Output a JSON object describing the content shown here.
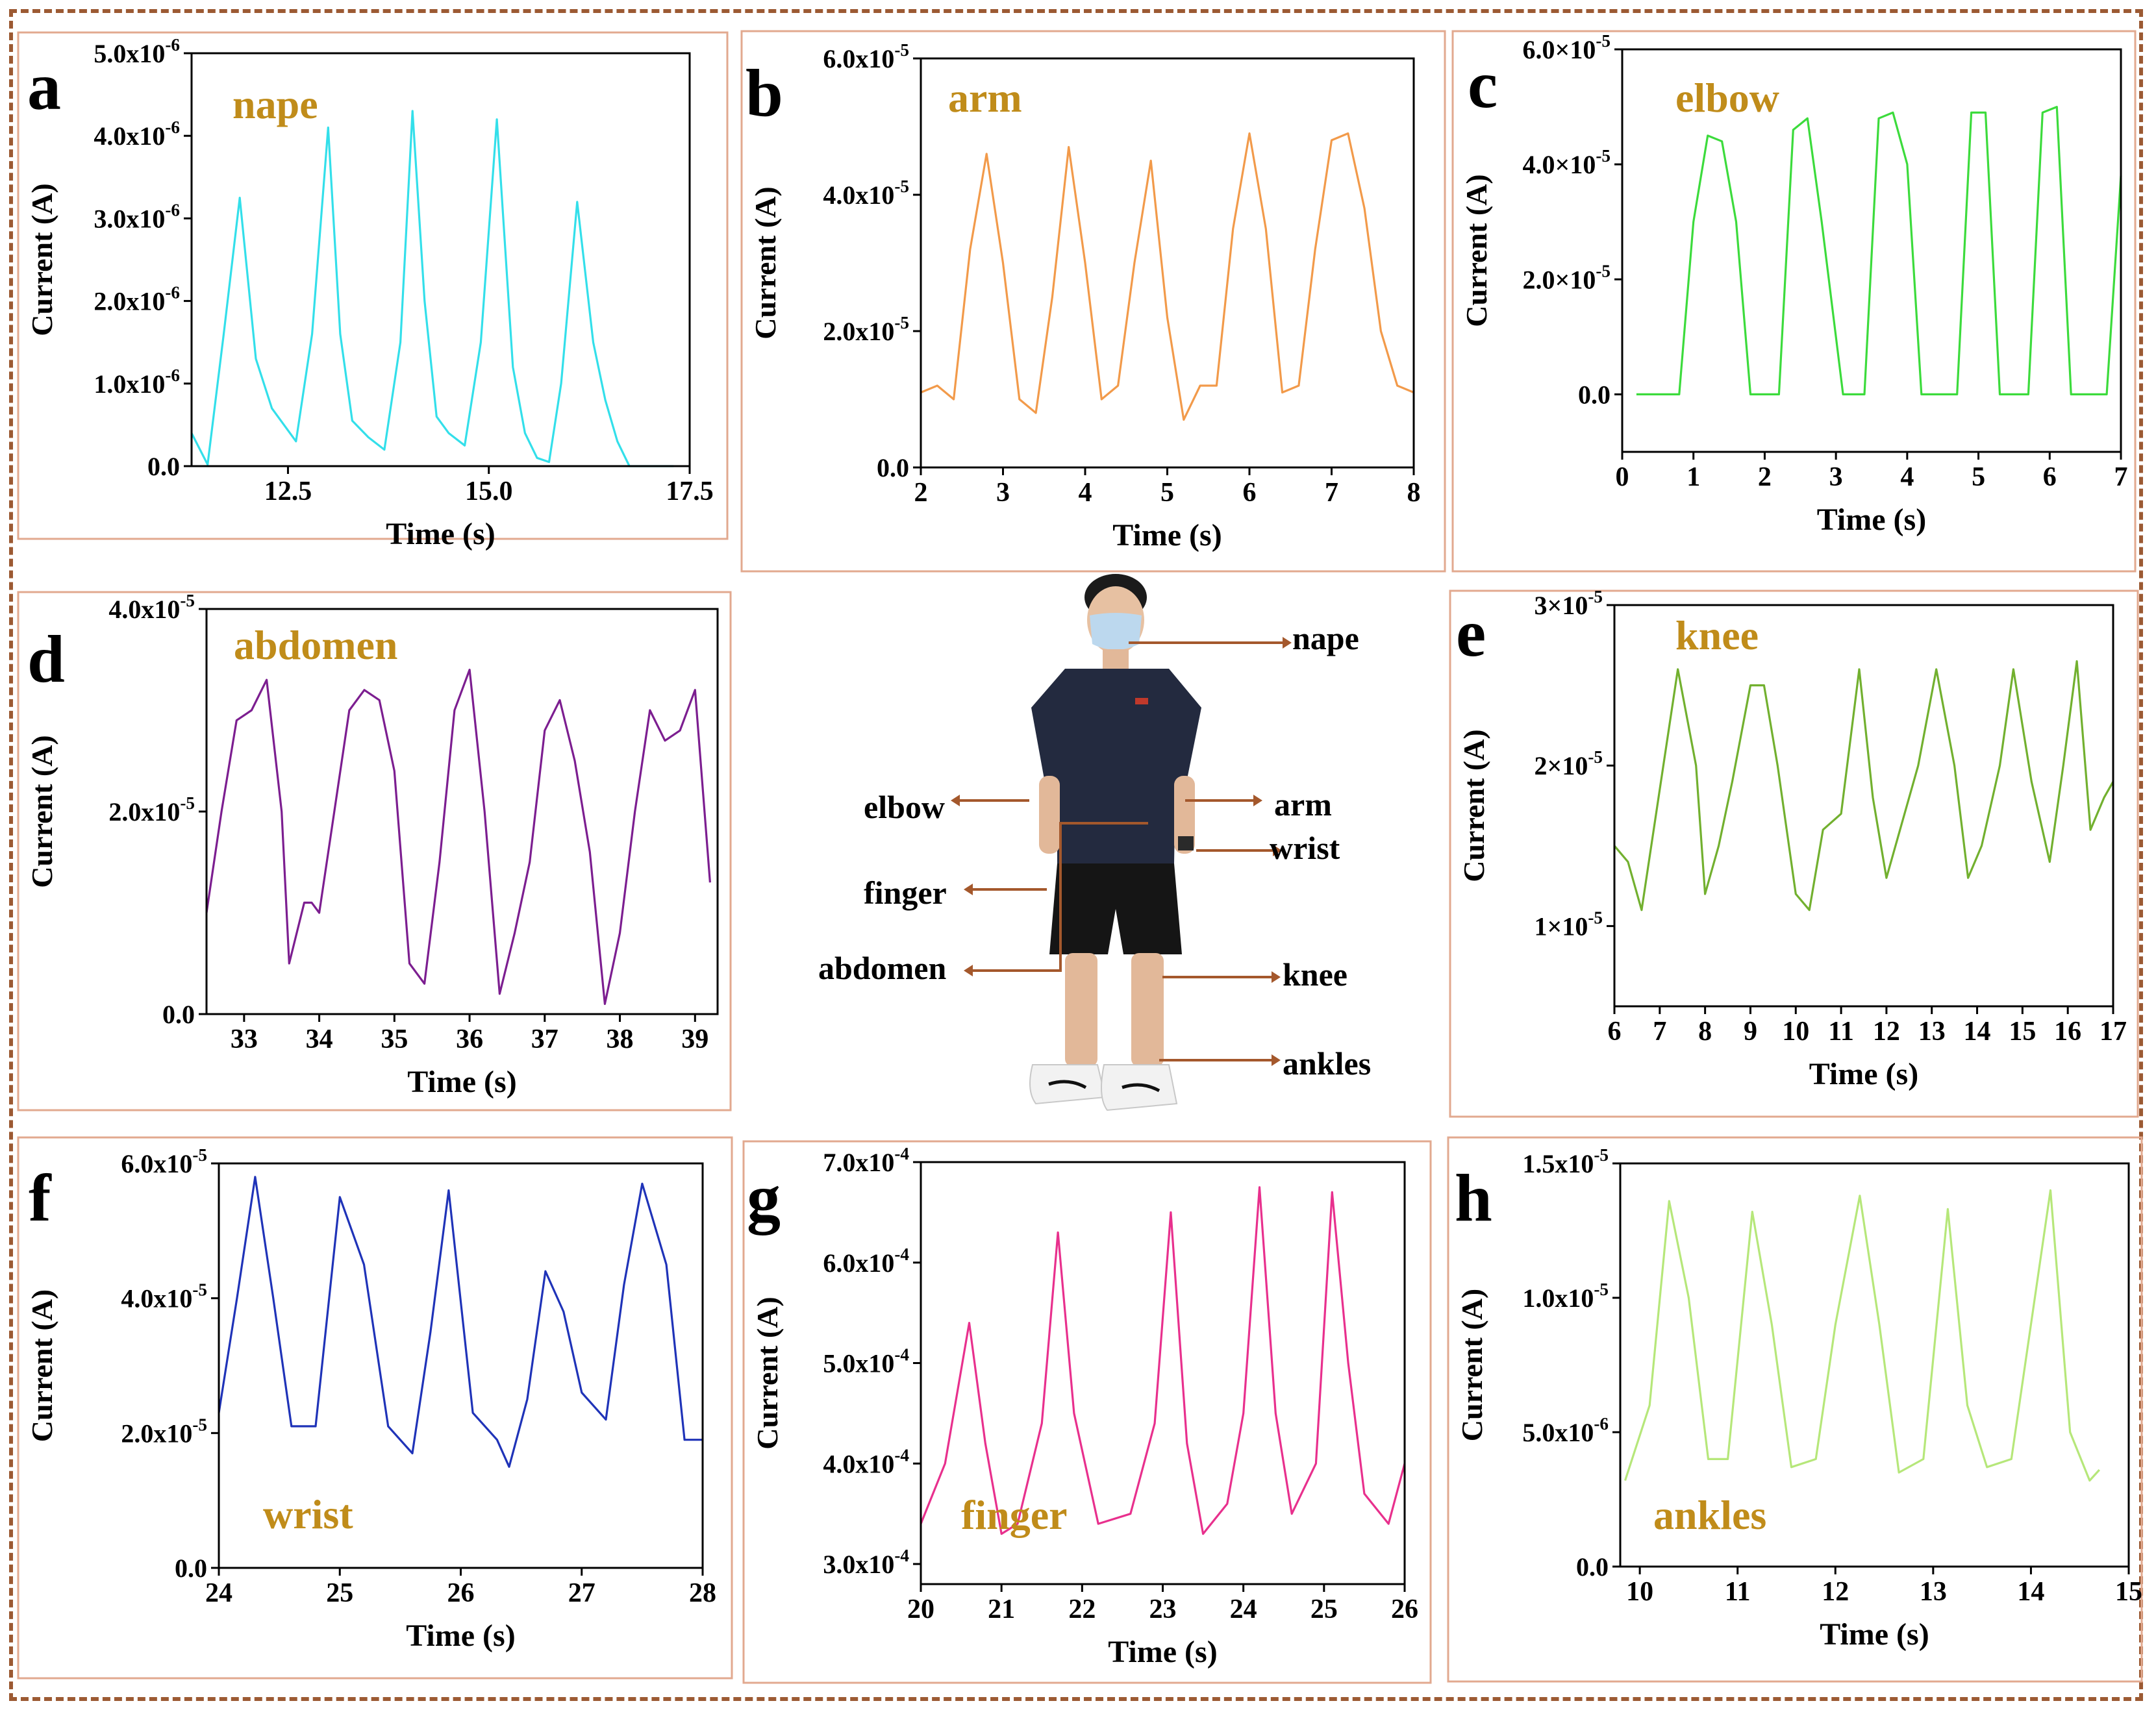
{
  "figure": {
    "center_labels": [
      "nape",
      "arm",
      "wrist",
      "elbow",
      "finger",
      "abdomen",
      "knee",
      "ankles"
    ],
    "colors": {
      "frame": "#9c5a33",
      "panel_border": "#e2a98f",
      "annotation_text": "#c08c1a",
      "arrow": "#a4582c",
      "axis": "#000000"
    }
  },
  "chart_data": [
    {
      "panel_letter": "a",
      "type": "line",
      "title": "nape",
      "color": "#33dfea",
      "xlabel": "Time (s)",
      "ylabel": "Current (A)",
      "xlim": [
        11.3,
        17.5
      ],
      "ylim": [
        0,
        5e-06
      ],
      "xticks": [
        12.5,
        15.0,
        17.5
      ],
      "xticklabels": [
        "12.5",
        "15.0",
        "17.5"
      ],
      "yticks": [
        0,
        1e-06,
        2e-06,
        3e-06,
        4e-06,
        5e-06
      ],
      "yticklabels": [
        "0.0",
        "1.0x10^-6",
        "2.0x10^-6",
        "3.0x10^-6",
        "4.0x10^-6",
        "5.0x10^-6"
      ],
      "x": [
        11.3,
        11.5,
        11.7,
        11.9,
        12.1,
        12.3,
        12.6,
        12.8,
        13.0,
        13.15,
        13.3,
        13.5,
        13.7,
        13.9,
        14.05,
        14.2,
        14.35,
        14.5,
        14.7,
        14.9,
        15.1,
        15.3,
        15.45,
        15.6,
        15.75,
        15.9,
        16.1,
        16.3,
        16.45,
        16.6,
        16.75,
        16.9,
        17.0,
        17.15,
        17.3
      ],
      "values": [
        4e-07,
        2e-08,
        1.6e-06,
        3.25e-06,
        1.3e-06,
        7e-07,
        3e-07,
        1.6e-06,
        4.1e-06,
        1.6e-06,
        5.5e-07,
        3.5e-07,
        2e-07,
        1.5e-06,
        4.3e-06,
        2e-06,
        6e-07,
        4e-07,
        2.5e-07,
        1.5e-06,
        4.2e-06,
        1.2e-06,
        4e-07,
        1e-07,
        5e-08,
        1e-06,
        3.2e-06,
        1.5e-06,
        8e-07,
        3e-07,
        0.0,
        0.0,
        0.0,
        0.0,
        0.0
      ]
    },
    {
      "panel_letter": "b",
      "type": "line",
      "title": "arm",
      "color": "#f29a4a",
      "xlabel": "Time (s)",
      "ylabel": "Current (A)",
      "xlim": [
        2,
        8
      ],
      "ylim": [
        0,
        6e-05
      ],
      "xticks": [
        2,
        3,
        4,
        5,
        6,
        7,
        8
      ],
      "xticklabels": [
        "2",
        "3",
        "4",
        "5",
        "6",
        "7",
        "8"
      ],
      "yticks": [
        0,
        2e-05,
        4e-05,
        6e-05
      ],
      "yticklabels": [
        "0.0",
        "2.0x10^-5",
        "4.0x10^-5",
        "6.0x10^-5"
      ],
      "x": [
        2.0,
        2.2,
        2.4,
        2.6,
        2.8,
        3.0,
        3.2,
        3.4,
        3.6,
        3.8,
        4.0,
        4.2,
        4.4,
        4.6,
        4.8,
        5.0,
        5.2,
        5.4,
        5.6,
        5.8,
        6.0,
        6.2,
        6.4,
        6.6,
        6.8,
        7.0,
        7.2,
        7.4,
        7.6,
        7.8,
        8.0
      ],
      "values": [
        1.1e-05,
        1.2e-05,
        1e-05,
        3.2e-05,
        4.6e-05,
        3e-05,
        1e-05,
        8e-06,
        2.5e-05,
        4.7e-05,
        3e-05,
        1e-05,
        1.2e-05,
        3e-05,
        4.5e-05,
        2.2e-05,
        7e-06,
        1.2e-05,
        1.2e-05,
        3.5e-05,
        4.9e-05,
        3.5e-05,
        1.1e-05,
        1.2e-05,
        3.2e-05,
        4.8e-05,
        4.9e-05,
        3.8e-05,
        2e-05,
        1.2e-05,
        1.1e-05
      ]
    },
    {
      "panel_letter": "c",
      "type": "line",
      "title": "elbow",
      "color": "#3cdb3c",
      "xlabel": "Time (s)",
      "ylabel": "Current (A)",
      "xlim": [
        0,
        7
      ],
      "ylim": [
        -1e-05,
        6e-05
      ],
      "xticks": [
        0,
        1,
        2,
        3,
        4,
        5,
        6,
        7
      ],
      "xticklabels": [
        "0",
        "1",
        "2",
        "3",
        "4",
        "5",
        "6",
        "7"
      ],
      "yticks": [
        0,
        2e-05,
        4e-05,
        6e-05
      ],
      "yticklabels": [
        "0.0",
        "2.0×10^-5",
        "4.0×10^-5",
        "6.0×10^-5"
      ],
      "x": [
        0.2,
        0.8,
        1.0,
        1.2,
        1.4,
        1.6,
        1.8,
        2.2,
        2.4,
        2.6,
        2.8,
        3.1,
        3.4,
        3.6,
        3.8,
        4.0,
        4.2,
        4.7,
        4.9,
        5.1,
        5.3,
        5.7,
        5.9,
        6.1,
        6.3,
        6.7,
        6.8,
        7.0
      ],
      "values": [
        0.0,
        0.0,
        3e-05,
        4.5e-05,
        4.4e-05,
        3e-05,
        0.0,
        0.0,
        4.6e-05,
        4.8e-05,
        3e-05,
        0.0,
        0.0,
        4.8e-05,
        4.9e-05,
        4e-05,
        0.0,
        0.0,
        4.9e-05,
        4.9e-05,
        0.0,
        0.0,
        4.9e-05,
        5e-05,
        0.0,
        0.0,
        0.0,
        3.8e-05
      ]
    },
    {
      "panel_letter": "d",
      "type": "line",
      "title": "abdomen",
      "color": "#7c1e90",
      "xlabel": "Time (s)",
      "ylabel": "Current (A)",
      "xlim": [
        32.5,
        39.3
      ],
      "ylim": [
        0,
        4e-05
      ],
      "xticks": [
        33,
        34,
        35,
        36,
        37,
        38,
        39
      ],
      "xticklabels": [
        "33",
        "34",
        "35",
        "36",
        "37",
        "38",
        "39"
      ],
      "yticks": [
        0,
        2e-05,
        4e-05
      ],
      "yticklabels": [
        "0.0",
        "2.0x10^-5",
        "4.0x10^-5"
      ],
      "x": [
        32.5,
        32.7,
        32.9,
        33.1,
        33.3,
        33.5,
        33.6,
        33.8,
        33.9,
        34.0,
        34.2,
        34.4,
        34.6,
        34.8,
        35.0,
        35.2,
        35.4,
        35.6,
        35.8,
        36.0,
        36.2,
        36.4,
        36.6,
        36.8,
        37.0,
        37.2,
        37.4,
        37.6,
        37.8,
        38.0,
        38.2,
        38.4,
        38.6,
        38.8,
        39.0,
        39.2
      ],
      "values": [
        1e-05,
        2e-05,
        2.9e-05,
        3e-05,
        3.3e-05,
        2e-05,
        5e-06,
        1.1e-05,
        1.1e-05,
        1e-05,
        2e-05,
        3e-05,
        3.2e-05,
        3.1e-05,
        2.4e-05,
        5e-06,
        3e-06,
        1.5e-05,
        3e-05,
        3.4e-05,
        2e-05,
        2e-06,
        8e-06,
        1.5e-05,
        2.8e-05,
        3.1e-05,
        2.5e-05,
        1.6e-05,
        1e-06,
        8e-06,
        2e-05,
        3e-05,
        2.7e-05,
        2.8e-05,
        3.2e-05,
        1.3e-05
      ]
    },
    {
      "panel_letter": "e",
      "type": "line",
      "title": "knee",
      "color": "#72b02f",
      "xlabel": "Time (s)",
      "ylabel": "Current (A)",
      "xlim": [
        6,
        17
      ],
      "ylim": [
        5e-06,
        3e-05
      ],
      "xticks": [
        6,
        7,
        8,
        9,
        10,
        11,
        12,
        13,
        14,
        15,
        16,
        17
      ],
      "xticklabels": [
        "6",
        "7",
        "8",
        "9",
        "10",
        "11",
        "12",
        "13",
        "14",
        "15",
        "16",
        "17"
      ],
      "yticks": [
        1e-05,
        2e-05,
        3e-05
      ],
      "yticklabels": [
        "1×10^-5",
        "2×10^-5",
        "3×10^-5"
      ],
      "x": [
        6.0,
        6.3,
        6.6,
        7.0,
        7.4,
        7.8,
        8.0,
        8.3,
        8.6,
        9.0,
        9.3,
        9.6,
        10.0,
        10.3,
        10.6,
        11.0,
        11.4,
        11.7,
        12.0,
        12.4,
        12.7,
        13.1,
        13.5,
        13.8,
        14.1,
        14.5,
        14.8,
        15.2,
        15.6,
        15.9,
        16.2,
        16.5,
        16.8,
        17.0
      ],
      "values": [
        1.5e-05,
        1.4e-05,
        1.1e-05,
        1.85e-05,
        2.6e-05,
        2e-05,
        1.2e-05,
        1.5e-05,
        1.9e-05,
        2.5e-05,
        2.5e-05,
        2e-05,
        1.2e-05,
        1.1e-05,
        1.6e-05,
        1.7e-05,
        2.6e-05,
        1.8e-05,
        1.3e-05,
        1.7e-05,
        2e-05,
        2.6e-05,
        2e-05,
        1.3e-05,
        1.5e-05,
        2e-05,
        2.6e-05,
        1.9e-05,
        1.4e-05,
        2e-05,
        2.65e-05,
        1.6e-05,
        1.8e-05,
        1.9e-05
      ]
    },
    {
      "panel_letter": "f",
      "type": "line",
      "title": "wrist",
      "color": "#1f33b8",
      "xlabel": "Time (s)",
      "ylabel": "Current (A)",
      "xlim": [
        24,
        28
      ],
      "ylim": [
        0,
        6e-05
      ],
      "xticks": [
        24,
        25,
        26,
        27,
        28
      ],
      "xticklabels": [
        "24",
        "25",
        "26",
        "27",
        "28"
      ],
      "yticks": [
        0,
        2e-05,
        4e-05,
        6e-05
      ],
      "yticklabels": [
        "0.0",
        "2.0x10^-5",
        "4.0x10^-5",
        "6.0x10^-5"
      ],
      "x": [
        24.0,
        24.15,
        24.3,
        24.45,
        24.6,
        24.8,
        25.0,
        25.2,
        25.4,
        25.6,
        25.75,
        25.9,
        26.1,
        26.3,
        26.4,
        26.55,
        26.7,
        26.85,
        27.0,
        27.2,
        27.35,
        27.5,
        27.7,
        27.85,
        28.0
      ],
      "values": [
        2.3e-05,
        4e-05,
        5.8e-05,
        4e-05,
        2.1e-05,
        2.1e-05,
        5.5e-05,
        4.5e-05,
        2.1e-05,
        1.7e-05,
        3.5e-05,
        5.6e-05,
        2.3e-05,
        1.9e-05,
        1.5e-05,
        2.5e-05,
        4.4e-05,
        3.8e-05,
        2.6e-05,
        2.2e-05,
        4.2e-05,
        5.7e-05,
        4.5e-05,
        1.9e-05,
        1.9e-05
      ]
    },
    {
      "panel_letter": "g",
      "type": "line",
      "title": "finger",
      "color": "#e8308d",
      "xlabel": "Time (s)",
      "ylabel": "Current (A)",
      "xlim": [
        20,
        26
      ],
      "ylim": [
        0.00028,
        0.0007
      ],
      "xticks": [
        20,
        21,
        22,
        23,
        24,
        25,
        26
      ],
      "xticklabels": [
        "20",
        "21",
        "22",
        "23",
        "24",
        "25",
        "26"
      ],
      "yticks": [
        0.0003,
        0.0004,
        0.0005,
        0.0006,
        0.0007
      ],
      "yticklabels": [
        "3.0x10^-4",
        "4.0x10^-4",
        "5.0x10^-4",
        "6.0x10^-4",
        "7.0x10^-4"
      ],
      "x": [
        20.0,
        20.3,
        20.6,
        20.8,
        21.0,
        21.2,
        21.5,
        21.7,
        21.9,
        22.2,
        22.6,
        22.9,
        23.1,
        23.3,
        23.5,
        23.8,
        24.0,
        24.2,
        24.4,
        24.6,
        24.9,
        25.1,
        25.3,
        25.5,
        25.8,
        26.0
      ],
      "values": [
        0.00034,
        0.0004,
        0.00054,
        0.00042,
        0.00033,
        0.00034,
        0.00044,
        0.00063,
        0.00045,
        0.00034,
        0.00035,
        0.00044,
        0.00065,
        0.00042,
        0.00033,
        0.00036,
        0.00045,
        0.000675,
        0.00045,
        0.00035,
        0.0004,
        0.00067,
        0.0005,
        0.00037,
        0.00034,
        0.0004
      ]
    },
    {
      "panel_letter": "h",
      "type": "line",
      "title": "ankles",
      "color": "#b6e77a",
      "xlabel": "Time (s)",
      "ylabel": "Current (A)",
      "xlim": [
        9.8,
        15
      ],
      "ylim": [
        0,
        1.5e-05
      ],
      "xticks": [
        10,
        11,
        12,
        13,
        14,
        15
      ],
      "xticklabels": [
        "10",
        "11",
        "12",
        "13",
        "14",
        "15"
      ],
      "yticks": [
        0,
        5e-06,
        1e-05,
        1.5e-05
      ],
      "yticklabels": [
        "0.0",
        "5.0x10^-6",
        "1.0x10^-5",
        "1.5x10^-5"
      ],
      "x": [
        9.85,
        10.1,
        10.3,
        10.5,
        10.7,
        10.9,
        11.15,
        11.35,
        11.55,
        11.8,
        12.0,
        12.25,
        12.45,
        12.65,
        12.9,
        13.15,
        13.35,
        13.55,
        13.8,
        14.0,
        14.2,
        14.4,
        14.6,
        14.7
      ],
      "values": [
        3.2e-06,
        6e-06,
        1.36e-05,
        1e-05,
        4e-06,
        4e-06,
        1.32e-05,
        9e-06,
        3.7e-06,
        4e-06,
        9e-06,
        1.38e-05,
        9e-06,
        3.5e-06,
        4e-06,
        1.33e-05,
        6e-06,
        3.7e-06,
        4e-06,
        9e-06,
        1.4e-05,
        5e-06,
        3.2e-06,
        3.6e-06
      ]
    }
  ]
}
